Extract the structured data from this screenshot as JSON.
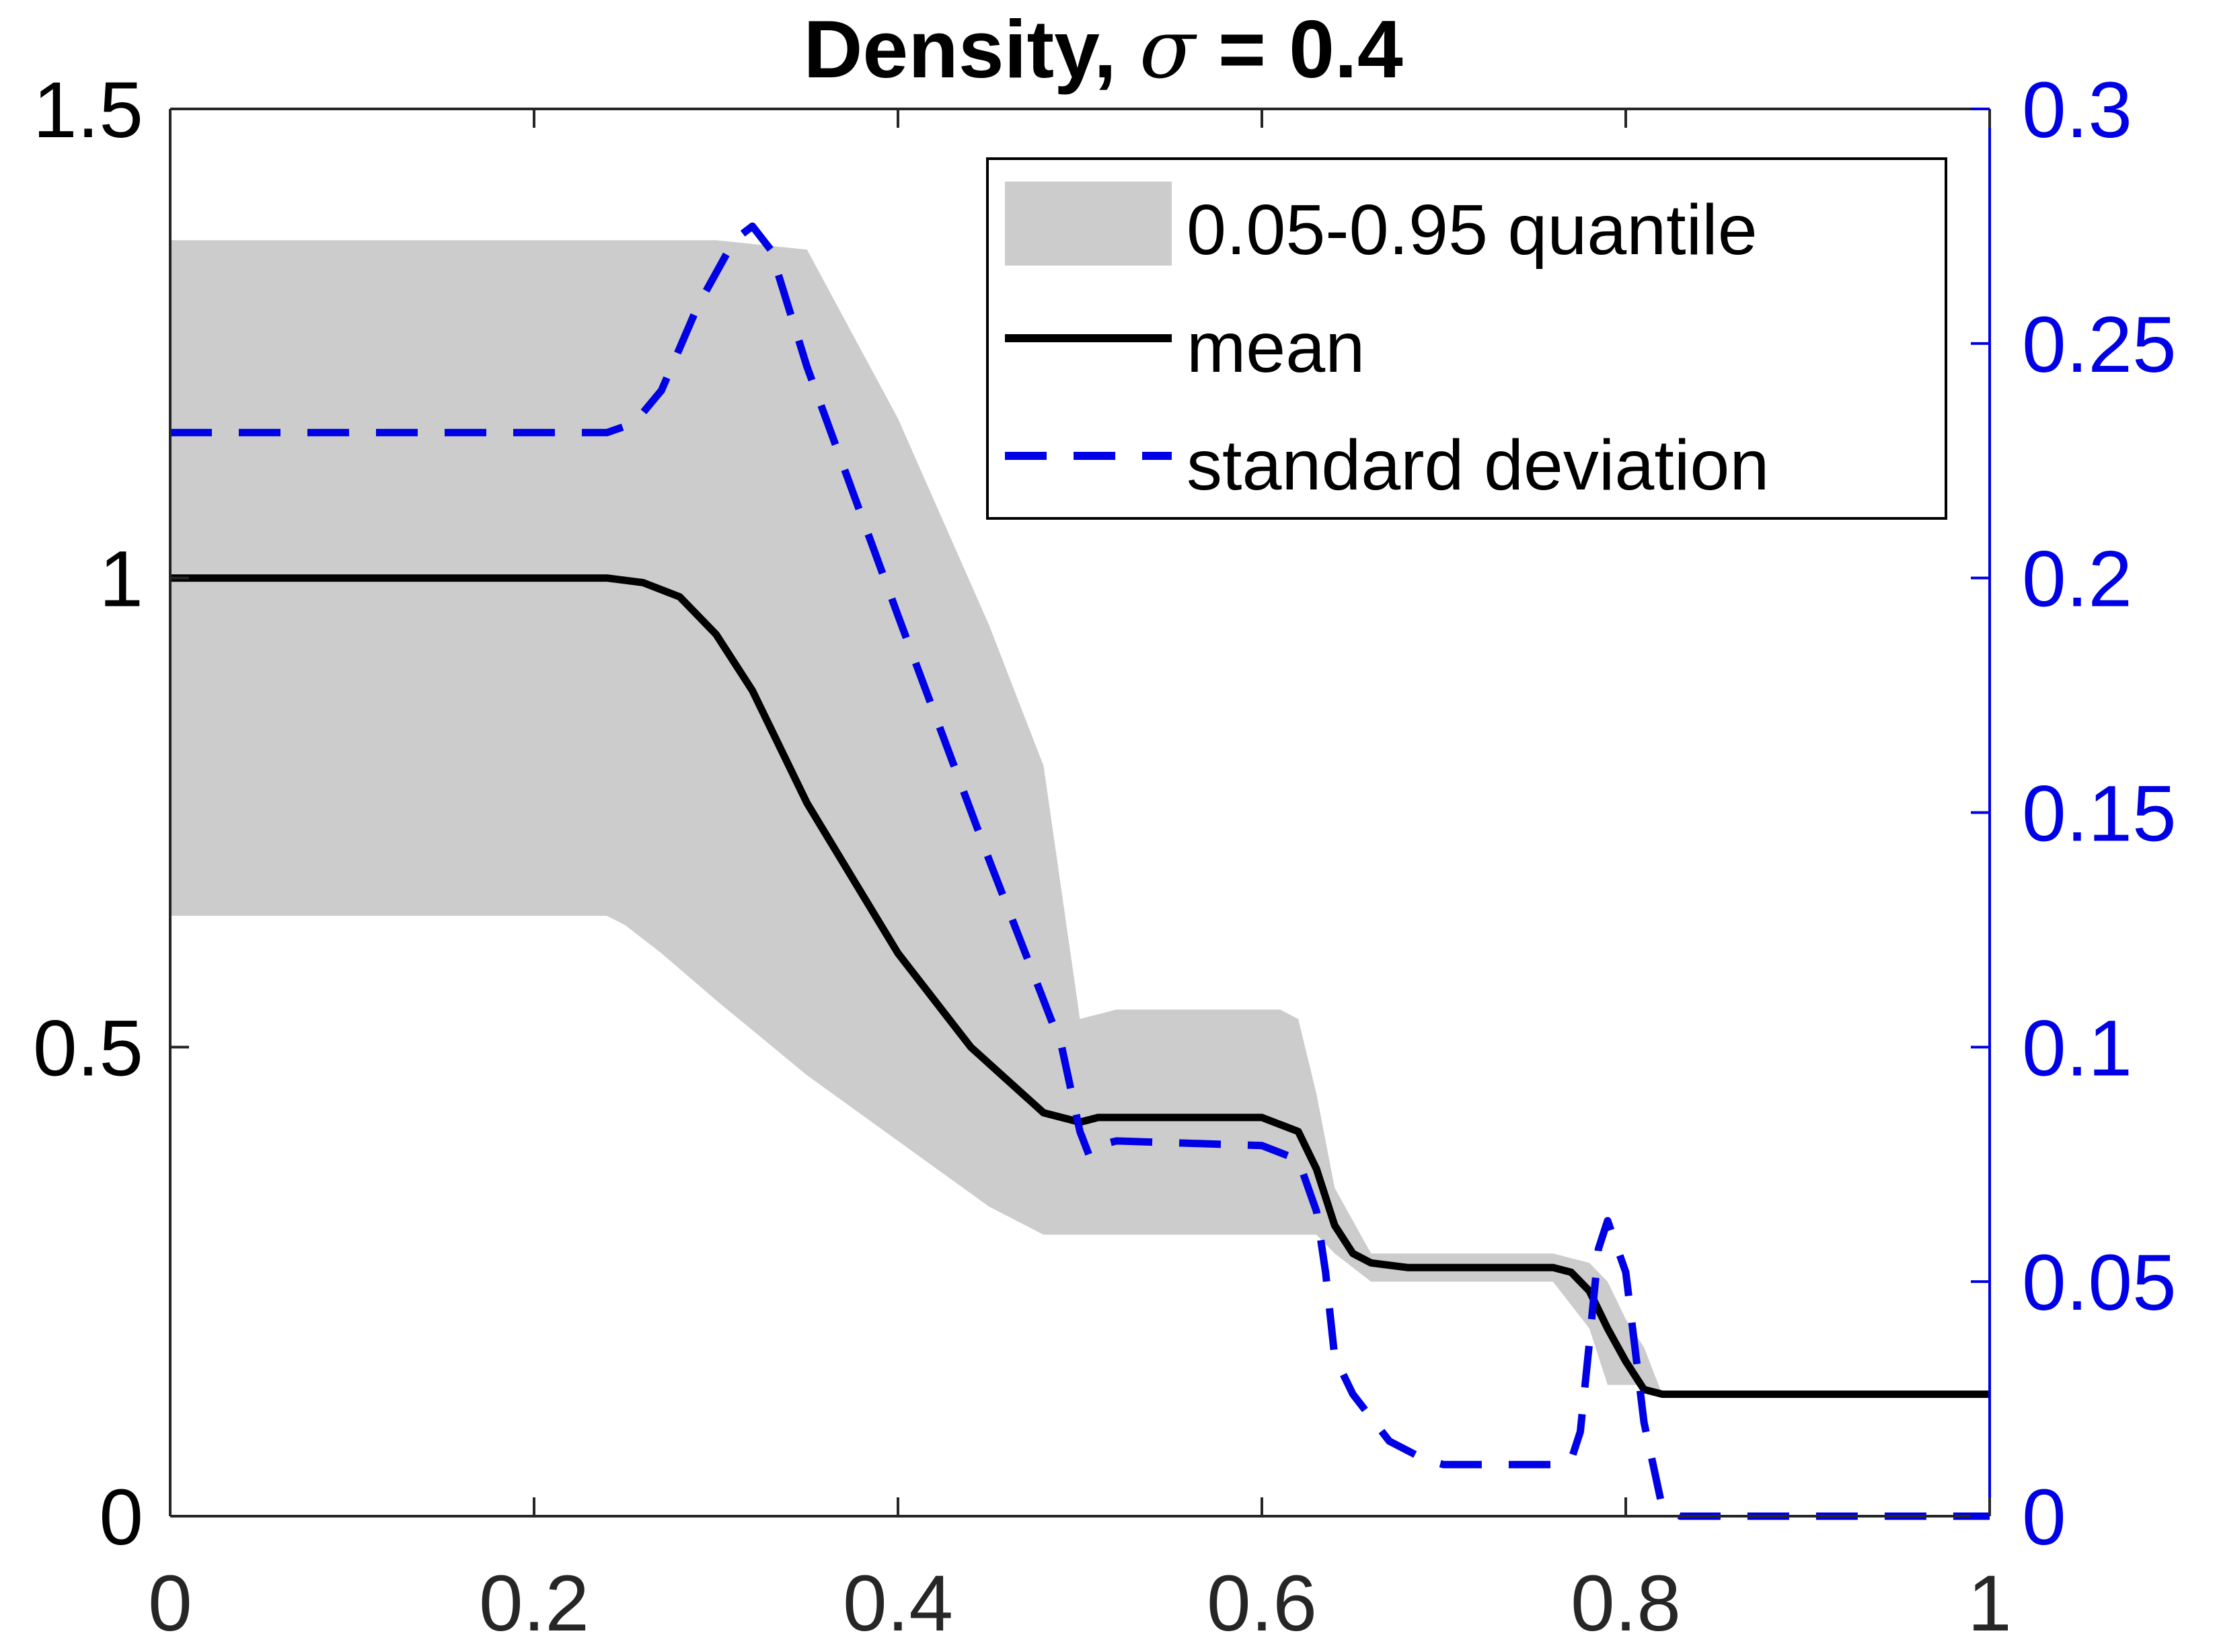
{
  "chart_data": {
    "type": "line",
    "title": "Density, σ = 0.4",
    "title_prefix": "Density, ",
    "title_symbol": "σ",
    "title_suffix": " = 0.4",
    "xlabel": "",
    "ylabel": "",
    "xlim": [
      0,
      1
    ],
    "ylim_left": [
      0,
      1.5
    ],
    "ylim_right": [
      0,
      0.3
    ],
    "grid": false,
    "legend_position": "top-right",
    "x_ticks": [
      "0",
      "0.2",
      "0.4",
      "0.6",
      "0.8",
      "1"
    ],
    "left_ticks": [
      "0",
      "0.5",
      "1",
      "1.5"
    ],
    "right_ticks": [
      "0",
      "0.05",
      "0.1",
      "0.15",
      "0.2",
      "0.25",
      "0.3"
    ],
    "colors": {
      "band": "#cccccc",
      "mean": "#000000",
      "std": "#0000e6",
      "right_axis": "#0000e6",
      "axis": "#262626"
    },
    "series": [
      {
        "name": "0.05-0.95 quantile",
        "kind": "band",
        "axis": "left",
        "x": [
          0,
          0.24,
          0.25,
          0.27,
          0.3,
          0.35,
          0.4,
          0.45,
          0.47,
          0.48,
          0.5,
          0.52,
          0.6,
          0.61,
          0.62,
          0.63,
          0.64,
          0.66,
          0.68,
          0.7,
          0.76,
          0.78,
          0.79,
          0.8,
          0.81,
          0.82,
          1.0
        ],
        "lower": [
          0.64,
          0.64,
          0.63,
          0.6,
          0.55,
          0.47,
          0.4,
          0.33,
          0.31,
          0.3,
          0.3,
          0.3,
          0.3,
          0.3,
          0.3,
          0.3,
          0.28,
          0.25,
          0.25,
          0.25,
          0.25,
          0.2,
          0.14,
          0.14,
          0.14,
          0.13,
          0.13
        ],
        "upper": [
          1.36,
          1.36,
          1.36,
          1.36,
          1.36,
          1.35,
          1.17,
          0.95,
          0.85,
          0.8,
          0.53,
          0.54,
          0.54,
          0.54,
          0.53,
          0.45,
          0.35,
          0.28,
          0.28,
          0.28,
          0.28,
          0.27,
          0.25,
          0.21,
          0.18,
          0.13,
          0.13
        ]
      },
      {
        "name": "mean",
        "kind": "line",
        "axis": "left",
        "x": [
          0,
          0.24,
          0.26,
          0.28,
          0.3,
          0.32,
          0.35,
          0.4,
          0.44,
          0.48,
          0.5,
          0.51,
          0.52,
          0.6,
          0.62,
          0.63,
          0.64,
          0.65,
          0.66,
          0.68,
          0.7,
          0.76,
          0.77,
          0.78,
          0.79,
          0.8,
          0.81,
          0.82,
          1.0
        ],
        "values": [
          1.0,
          1.0,
          0.995,
          0.98,
          0.94,
          0.88,
          0.76,
          0.6,
          0.5,
          0.43,
          0.42,
          0.425,
          0.425,
          0.425,
          0.41,
          0.37,
          0.31,
          0.28,
          0.27,
          0.265,
          0.265,
          0.265,
          0.26,
          0.24,
          0.2,
          0.165,
          0.135,
          0.13,
          0.13
        ]
      },
      {
        "name": "standard deviation",
        "kind": "dashed-line",
        "axis": "right",
        "x": [
          0,
          0.24,
          0.255,
          0.27,
          0.29,
          0.31,
          0.32,
          0.33,
          0.35,
          0.4,
          0.45,
          0.49,
          0.5,
          0.505,
          0.51,
          0.52,
          0.6,
          0.62,
          0.63,
          0.635,
          0.64,
          0.65,
          0.67,
          0.69,
          0.7,
          0.76,
          0.77,
          0.775,
          0.78,
          0.785,
          0.79,
          0.8,
          0.81,
          0.82,
          0.83,
          1.0
        ],
        "values": [
          0.231,
          0.231,
          0.233,
          0.24,
          0.258,
          0.272,
          0.275,
          0.27,
          0.245,
          0.192,
          0.14,
          0.1,
          0.082,
          0.077,
          0.079,
          0.08,
          0.079,
          0.076,
          0.065,
          0.052,
          0.034,
          0.026,
          0.016,
          0.012,
          0.011,
          0.011,
          0.012,
          0.018,
          0.037,
          0.057,
          0.063,
          0.052,
          0.02,
          0.002,
          0.0,
          0.0
        ]
      }
    ]
  }
}
